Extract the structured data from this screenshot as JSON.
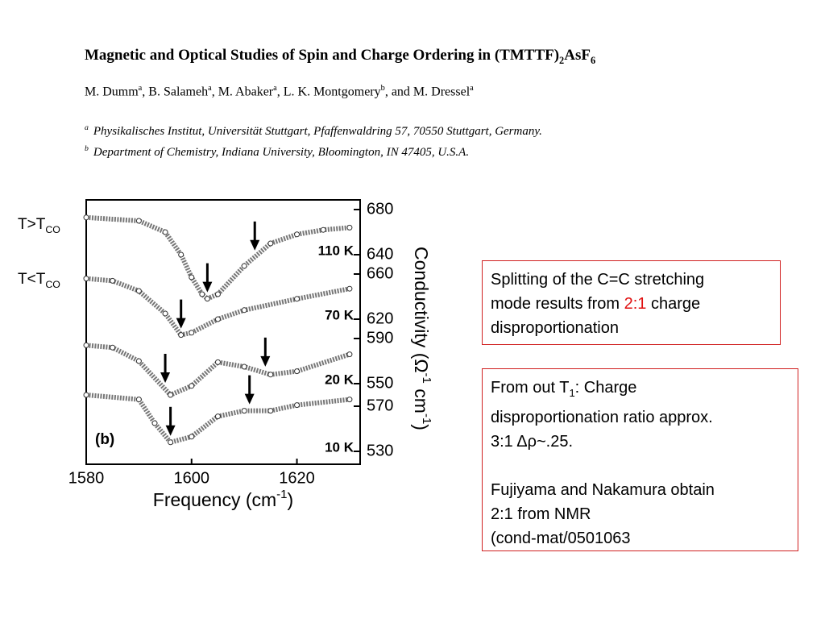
{
  "header": {
    "title": [
      "Magnetic and Optical Studies of Spin and Charge Ordering in (TMTTF)",
      "2",
      "AsF",
      "6"
    ],
    "authors": [
      "M. Dumm",
      "a",
      ", B. Salameh",
      "a",
      ", M. Abaker",
      "a",
      ", L. K. Montgomery",
      "b",
      ", and M. Dressel",
      "a"
    ],
    "affiliations": [
      {
        "mark": "a",
        "text": "Physikalisches Institut, Universität Stuttgart, Pfaffenwaldring 57, 70550 Stuttgart, Germany."
      },
      {
        "mark": "b",
        "text": "Department of Chemistry, Indiana University, Bloomington, IN 47405, U.S.A."
      }
    ]
  },
  "side_labels": [
    [
      "T>T",
      "CO"
    ],
    [
      "T<T",
      "CO"
    ]
  ],
  "chart_data": {
    "type": "line",
    "panel_label": "(b)",
    "xlabel": [
      "Frequency (cm",
      "-1",
      ")"
    ],
    "ylabel": [
      "Conductivity (Ω",
      "-1",
      " cm",
      "-1",
      ")"
    ],
    "xlim": [
      1580,
      1632
    ],
    "xticks": [
      1580,
      1600,
      1620
    ],
    "series": [
      {
        "name": "110 K",
        "color": "#555555",
        "yticks": [
          680,
          640
        ],
        "x": [
          1580,
          1590,
          1595,
          1598,
          1600,
          1602,
          1603,
          1605,
          1610,
          1615,
          1620,
          1625,
          1630
        ],
        "values": [
          673,
          670,
          660,
          640,
          620,
          605,
          601,
          605,
          630,
          650,
          658,
          662,
          664
        ],
        "arrows": [
          1603,
          1612
        ]
      },
      {
        "name": "70 K",
        "color": "#555555",
        "yticks": [
          660,
          620
        ],
        "x": [
          1580,
          1585,
          1590,
          1595,
          1598,
          1600,
          1605,
          1610,
          1620,
          1630
        ],
        "values": [
          656,
          654,
          645,
          625,
          606,
          608,
          620,
          628,
          638,
          647
        ],
        "arrows": [
          1598
        ]
      },
      {
        "name": "20 K",
        "color": "#555555",
        "yticks": [
          590,
          550
        ],
        "x": [
          1580,
          1585,
          1590,
          1596,
          1600,
          1605,
          1610,
          1615,
          1620,
          1630
        ],
        "values": [
          584,
          582,
          570,
          540,
          548,
          569,
          565,
          558,
          561,
          576
        ],
        "arrows": [
          1595,
          1614
        ]
      },
      {
        "name": "10 K",
        "color": "#555555",
        "yticks": [
          570,
          530
        ],
        "x": [
          1580,
          1590,
          1593,
          1596,
          1600,
          1605,
          1610,
          1615,
          1620,
          1630
        ],
        "values": [
          580,
          576,
          555,
          538,
          543,
          561,
          566,
          566,
          571,
          576
        ],
        "arrows": [
          1596,
          1611
        ]
      }
    ]
  },
  "boxes": [
    {
      "lines": [
        [
          "Splitting of the C=C stretching"
        ],
        [
          "mode results from ",
          "2:1",
          " charge"
        ],
        [
          "disproportionation"
        ]
      ]
    },
    {
      "lines": [
        [
          "From out T",
          "1",
          ": Charge"
        ],
        [
          "disproportionation ratio approx."
        ],
        [
          "3:1 Δρ~.25."
        ],
        [
          "Fujiyama and Nakamura obtain"
        ],
        [
          "2:1 from NMR"
        ],
        [
          "(cond-mat/0501063"
        ]
      ]
    }
  ]
}
